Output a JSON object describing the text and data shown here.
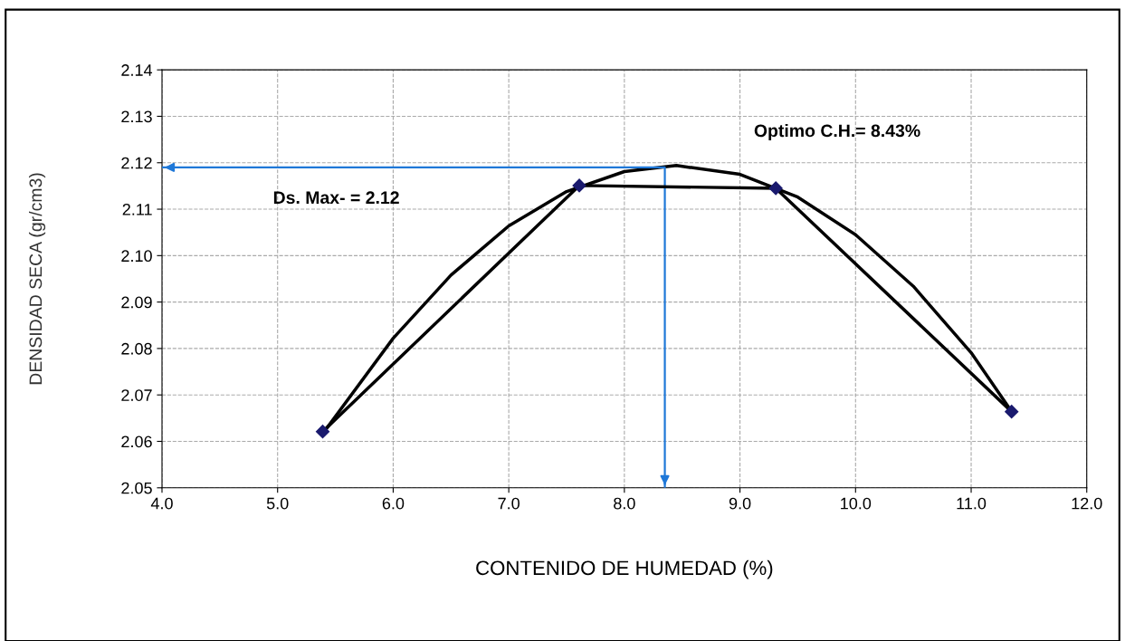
{
  "chart_data": {
    "type": "line",
    "xlabel": "CONTENIDO DE HUMEDAD (%)",
    "ylabel": "DENSIDAD SECA (gr/cm3)",
    "annotations": [
      "Optimo C.H.= 8.43%",
      "Ds. Max- = 2.12"
    ],
    "series": [
      {
        "color": "#000000",
        "marker": "diamond",
        "x": [
          5.39,
          7.61,
          9.31,
          11.35
        ],
        "values": [
          2.0621,
          2.1151,
          2.1145,
          2.0664
        ]
      },
      {
        "color": "#000000",
        "marker": "none",
        "x": [
          5.4,
          6.0,
          6.5,
          7.0,
          7.5,
          8.0,
          8.45,
          9.0,
          9.5,
          10.0,
          10.5,
          11.0,
          11.35
        ],
        "values": [
          2.062,
          2.0822,
          2.0958,
          2.1064,
          2.1138,
          2.1181,
          2.1194,
          2.1175,
          2.1126,
          2.1045,
          2.0934,
          2.0791,
          2.0664
        ]
      },
      {
        "color": "#1f78d8",
        "marker": "none",
        "x": [
          4.0,
          8.35,
          8.35
        ],
        "values": [
          2.119,
          2.119,
          2.05
        ]
      }
    ],
    "xlim": [
      4.0,
      12.0
    ],
    "xticks": [
      {
        "value": 4,
        "label": "4.0"
      },
      {
        "value": 5,
        "label": "5.0"
      },
      {
        "value": 6,
        "label": "6.0"
      },
      {
        "value": 7,
        "label": "7.0"
      },
      {
        "value": 8,
        "label": "8.0"
      },
      {
        "value": 9,
        "label": "9.0"
      },
      {
        "value": 10,
        "label": "10.0"
      },
      {
        "value": 11,
        "label": "11.0"
      },
      {
        "value": 12,
        "label": "12.0"
      }
    ],
    "ylim": [
      2.05,
      2.14
    ],
    "yticks": [
      2.05,
      2.06,
      2.07,
      2.08,
      2.09,
      {
        "value": 2.1,
        "label": "2.10"
      },
      2.11,
      2.12,
      2.13,
      2.14
    ],
    "grid": true,
    "line_style": "solid"
  }
}
